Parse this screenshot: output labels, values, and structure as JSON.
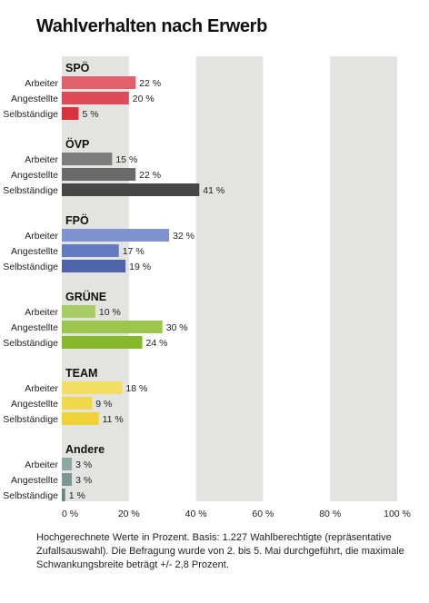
{
  "title": "Wahlverhalten nach Erwerb",
  "footnote": "Hochgerechnete Werte in Prozent. Basis: 1.227 Wahlberechtigte (repräsentative Zufallsauswahl). Die Befragung wurde von 2. bis 5. Mai durchgeführt, die maximale Schwankungsbreite beträgt +/- 2,8 Prozent.",
  "chart_data": {
    "type": "bar",
    "orientation": "horizontal",
    "title": "Wahlverhalten nach Erwerb",
    "categories": [
      "Arbeiter",
      "Angestellte",
      "Selbständige"
    ],
    "value_suffix": " %",
    "xlim": [
      0,
      100
    ],
    "xticks": [
      0,
      20,
      40,
      60,
      80,
      100
    ],
    "xtick_labels": [
      "0 %",
      "20 %",
      "40 %",
      "60 %",
      "80 %",
      "100 %"
    ],
    "grid": "alternating vertical bands",
    "groups": [
      {
        "name": "SPÖ",
        "values": [
          22,
          20,
          5
        ],
        "colors": [
          "#e0616b",
          "#de4a57",
          "#d9323f"
        ]
      },
      {
        "name": "ÖVP",
        "values": [
          15,
          22,
          41
        ],
        "colors": [
          "#7d7d7d",
          "#6b6b6b",
          "#474747"
        ]
      },
      {
        "name": "FPÖ",
        "values": [
          32,
          17,
          19
        ],
        "colors": [
          "#7e93cf",
          "#6479bf",
          "#4f63ab"
        ]
      },
      {
        "name": "GRÜNE",
        "values": [
          10,
          30,
          24
        ],
        "colors": [
          "#a8cd66",
          "#9bc64b",
          "#86b82c"
        ]
      },
      {
        "name": "TEAM",
        "values": [
          18,
          9,
          11
        ],
        "colors": [
          "#f2de62",
          "#f0d84a",
          "#eed236"
        ]
      },
      {
        "name": "Andere",
        "values": [
          3,
          3,
          1
        ],
        "colors": [
          "#8fa7a5",
          "#7b9694",
          "#688583"
        ]
      }
    ],
    "band_color": "#e3e3e1"
  }
}
